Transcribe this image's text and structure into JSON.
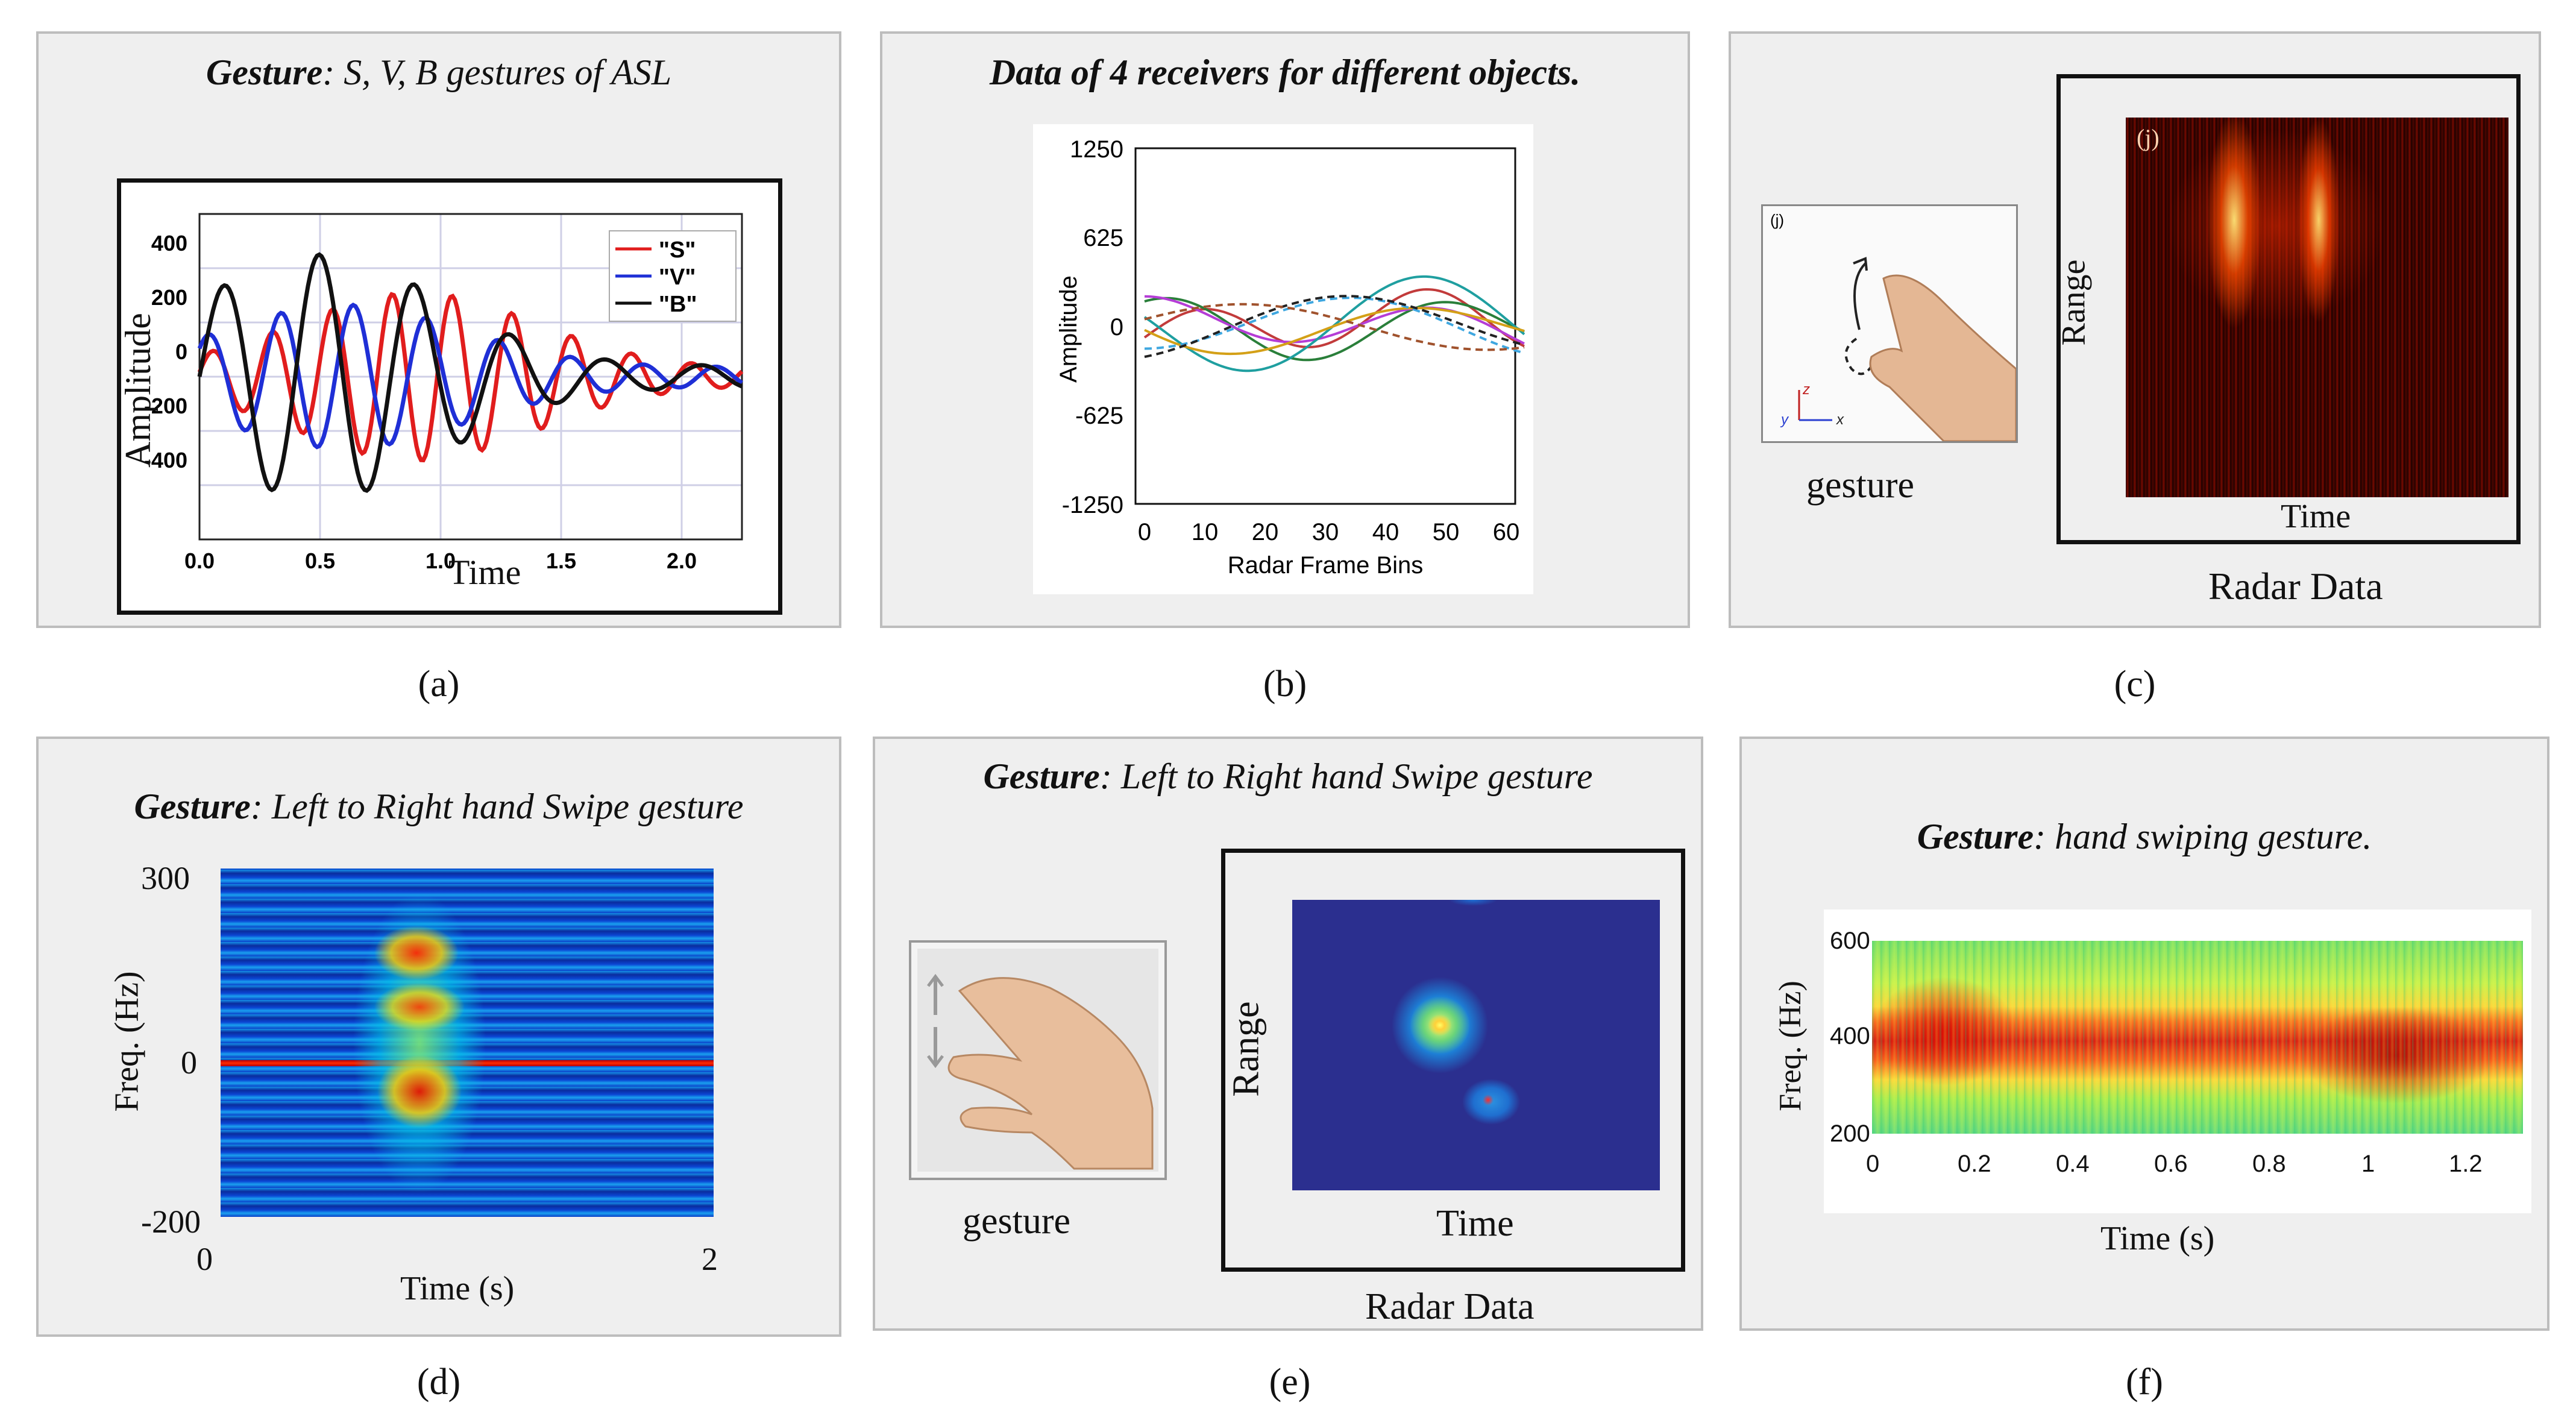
{
  "panels": {
    "a": {
      "caption": "(a)",
      "title_bold": "Gesture",
      "title_rest": ": S, V, B gestures of ASL",
      "xlabel": "Time",
      "ylabel": "Amplitude",
      "xticks": [
        "0.0",
        "0.5",
        "1.0",
        "1.5",
        "2.0"
      ],
      "yticks": [
        "400",
        "200",
        "0",
        "-200",
        "-400"
      ],
      "legend": [
        "\"S\"",
        "\"V\"",
        "\"B\""
      ],
      "colors": {
        "S": "#e11d1d",
        "V": "#1f2fd6",
        "B": "#111111"
      }
    },
    "b": {
      "caption": "(b)",
      "title": "Data of 4 receivers for different objects.",
      "xlabel": "Radar Frame Bins",
      "ylabel": "Amplitude",
      "xticks": [
        "0",
        "10",
        "20",
        "30",
        "40",
        "50",
        "60"
      ],
      "yticks": [
        "1250",
        "625",
        "0",
        "-625",
        "-1250"
      ]
    },
    "c": {
      "caption": "(c)",
      "gesture_label": "gesture",
      "radar_label": "Radar Data",
      "range_label": "Range",
      "time_label": "Time",
      "inset_tag": "(j)",
      "axes_letters": [
        "z",
        "y",
        "x"
      ]
    },
    "d": {
      "caption": "(d)",
      "title_bold": "Gesture",
      "title_rest": ": Left to Right hand Swipe gesture",
      "ylabel": "Freq. (Hz)",
      "xlabel": "Time (s)",
      "yticks": [
        "300",
        "0",
        "-200"
      ],
      "xticks": [
        "0",
        "2"
      ]
    },
    "e": {
      "caption": "(e)",
      "title_bold": "Gesture",
      "title_rest": ": Left to Right hand Swipe gesture",
      "gesture_label": "gesture",
      "range_label": "Range",
      "time_label": "Time",
      "radar_label": "Radar Data"
    },
    "f": {
      "caption": "(f)",
      "title_bold": "Gesture",
      "title_rest": ": hand swiping gesture.",
      "ylabel": "Freq. (Hz)",
      "xlabel": "Time (s)",
      "yticks": [
        "600",
        "400",
        "200"
      ],
      "xticks": [
        "0",
        "0.2",
        "0.4",
        "0.6",
        "0.8",
        "1",
        "1.2"
      ]
    }
  }
}
